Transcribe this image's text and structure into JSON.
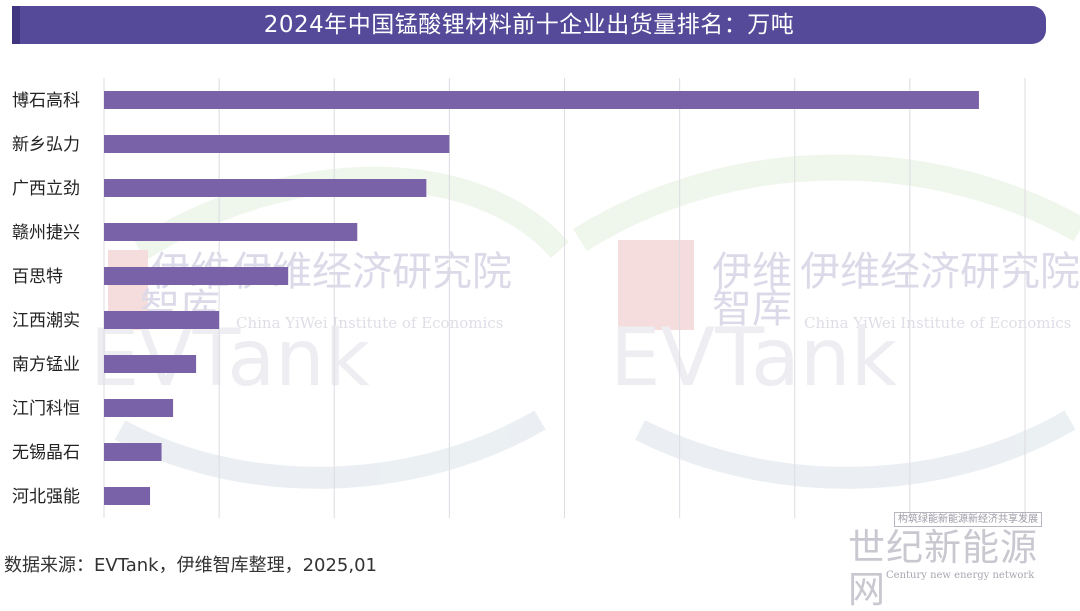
{
  "chart_data": {
    "type": "bar",
    "orientation": "horizontal",
    "title": "2024年中国锰酸锂材料前十企业出货量排名：万吨",
    "categories": [
      "博石高科",
      "新乡弘力",
      "广西立劲",
      "赣州捷兴",
      "百思特",
      "江西潮实",
      "南方锰业",
      "江门科恒",
      "无锡晶石",
      "河北强能"
    ],
    "values": [
      7.6,
      3.0,
      2.8,
      2.2,
      1.6,
      1.0,
      0.8,
      0.6,
      0.5,
      0.4
    ],
    "xlim": [
      0,
      8
    ],
    "grid": true,
    "bar_color": "#7a62a8"
  },
  "source": "数据来源：EVTank，伊维智库整理，2025,01",
  "watermarks": {
    "brand": "EVTank",
    "zh_short_1": "伊维",
    "zh_short_2": "智库",
    "zh_long": "伊维经济研究院",
    "en": "China YiWei Institute of Economics"
  },
  "corner_logo": {
    "top": "构筑绿能新能源新经济共享发展",
    "main": "世纪新能源网",
    "sub": "Century new energy network"
  }
}
